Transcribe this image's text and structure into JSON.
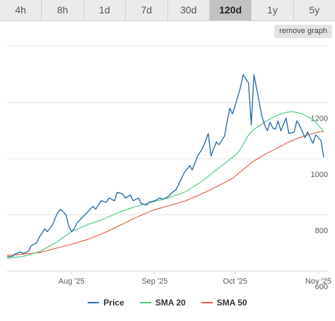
{
  "tabs": [
    {
      "label": "4h",
      "active": false
    },
    {
      "label": "8h",
      "active": false
    },
    {
      "label": "1d",
      "active": false
    },
    {
      "label": "7d",
      "active": false
    },
    {
      "label": "30d",
      "active": false
    },
    {
      "label": "120d",
      "active": true
    },
    {
      "label": "1y",
      "active": false
    },
    {
      "label": "5y",
      "active": false
    }
  ],
  "remove_graph_label": "remove graph",
  "chart_data": {
    "type": "line",
    "x_start": "2025-07-08",
    "x_ticks": [
      {
        "label": "Aug '25",
        "date": "2025-08-01"
      },
      {
        "label": "Sep '25",
        "date": "2025-09-01"
      },
      {
        "label": "Oct '25",
        "date": "2025-10-01"
      },
      {
        "label": "Nov '25",
        "date": "2025-11-01"
      }
    ],
    "y_ticks": [
      600,
      800,
      1000,
      1200
    ],
    "ylim": [
      600,
      1400
    ],
    "grid": true,
    "legend_position": "bottom",
    "series": [
      {
        "name": "Price",
        "color": "#2c6fa6",
        "x": [
          "2025-07-08",
          "2025-07-10",
          "2025-07-11",
          "2025-07-13",
          "2025-07-14",
          "2025-07-16",
          "2025-07-17",
          "2025-07-19",
          "2025-07-20",
          "2025-07-22",
          "2025-07-23",
          "2025-07-25",
          "2025-07-26",
          "2025-07-27",
          "2025-07-28",
          "2025-07-30",
          "2025-07-31",
          "2025-08-01",
          "2025-08-02",
          "2025-08-03",
          "2025-08-04",
          "2025-08-06",
          "2025-08-07",
          "2025-08-09",
          "2025-08-10",
          "2025-08-12",
          "2025-08-14",
          "2025-08-15",
          "2025-08-17",
          "2025-08-18",
          "2025-08-20",
          "2025-08-21",
          "2025-08-23",
          "2025-08-24",
          "2025-08-26",
          "2025-08-27",
          "2025-08-29",
          "2025-08-30",
          "2025-09-01",
          "2025-09-03",
          "2025-09-04",
          "2025-09-06",
          "2025-09-07",
          "2025-09-09",
          "2025-09-10",
          "2025-09-12",
          "2025-09-14",
          "2025-09-15",
          "2025-09-17",
          "2025-09-18",
          "2025-09-19",
          "2025-09-21",
          "2025-09-22",
          "2025-09-24",
          "2025-09-25",
          "2025-09-27",
          "2025-09-29",
          "2025-09-30",
          "2025-10-01",
          "2025-10-03",
          "2025-10-04",
          "2025-10-06",
          "2025-10-07",
          "2025-10-08",
          "2025-10-09",
          "2025-10-10",
          "2025-10-11",
          "2025-10-12",
          "2025-10-13",
          "2025-10-14",
          "2025-10-15",
          "2025-10-16",
          "2025-10-17",
          "2025-10-18",
          "2025-10-20",
          "2025-10-21",
          "2025-10-23",
          "2025-10-24",
          "2025-10-25",
          "2025-10-27",
          "2025-10-28",
          "2025-10-30",
          "2025-10-31",
          "2025-11-01",
          "2025-11-02",
          "2025-11-03"
        ],
        "values": [
          650,
          652,
          660,
          668,
          662,
          670,
          690,
          700,
          720,
          750,
          740,
          765,
          790,
          810,
          820,
          800,
          760,
          740,
          750,
          770,
          780,
          800,
          810,
          830,
          820,
          850,
          845,
          860,
          850,
          880,
          875,
          860,
          870,
          850,
          860,
          840,
          835,
          845,
          850,
          860,
          855,
          865,
          875,
          890,
          910,
          950,
          975,
          960,
          1010,
          1025,
          1040,
          1090,
          1010,
          1060,
          1050,
          1080,
          1180,
          1160,
          1190,
          1255,
          1300,
          1270,
          1120,
          1300,
          1250,
          1200,
          1150,
          1120,
          1100,
          1130,
          1110,
          1105,
          1135,
          1100,
          1145,
          1090,
          1095,
          1135,
          1120,
          1075,
          1095,
          1055,
          1085,
          1075,
          1065,
          1005
        ]
      },
      {
        "name": "SMA 20",
        "color": "#4fcb7e",
        "x": [
          "2025-07-08",
          "2025-07-14",
          "2025-07-20",
          "2025-07-26",
          "2025-08-01",
          "2025-08-07",
          "2025-08-13",
          "2025-08-19",
          "2025-08-25",
          "2025-08-31",
          "2025-09-06",
          "2025-09-12",
          "2025-09-18",
          "2025-09-24",
          "2025-09-30",
          "2025-10-02",
          "2025-10-04",
          "2025-10-06",
          "2025-10-08",
          "2025-10-10",
          "2025-10-12",
          "2025-10-14",
          "2025-10-16",
          "2025-10-18",
          "2025-10-20",
          "2025-10-22",
          "2025-10-24",
          "2025-10-26",
          "2025-10-28",
          "2025-10-30",
          "2025-11-01",
          "2025-11-03"
        ],
        "values": [
          645,
          652,
          668,
          700,
          740,
          765,
          785,
          810,
          830,
          845,
          860,
          880,
          915,
          960,
          1005,
          1020,
          1050,
          1085,
          1105,
          1118,
          1130,
          1142,
          1152,
          1160,
          1165,
          1168,
          1165,
          1160,
          1150,
          1140,
          1120,
          1095
        ]
      },
      {
        "name": "SMA 50",
        "color": "#e8614e",
        "x": [
          "2025-07-08",
          "2025-07-14",
          "2025-07-20",
          "2025-07-26",
          "2025-08-01",
          "2025-08-07",
          "2025-08-13",
          "2025-08-19",
          "2025-08-25",
          "2025-08-31",
          "2025-09-06",
          "2025-09-12",
          "2025-09-18",
          "2025-09-24",
          "2025-09-30",
          "2025-10-04",
          "2025-10-08",
          "2025-10-12",
          "2025-10-16",
          "2025-10-20",
          "2025-10-24",
          "2025-10-28",
          "2025-11-01",
          "2025-11-03"
        ],
        "values": [
          655,
          660,
          665,
          680,
          695,
          712,
          735,
          762,
          790,
          815,
          832,
          848,
          872,
          900,
          930,
          962,
          992,
          1015,
          1035,
          1055,
          1072,
          1085,
          1095,
          1098
        ]
      }
    ]
  }
}
